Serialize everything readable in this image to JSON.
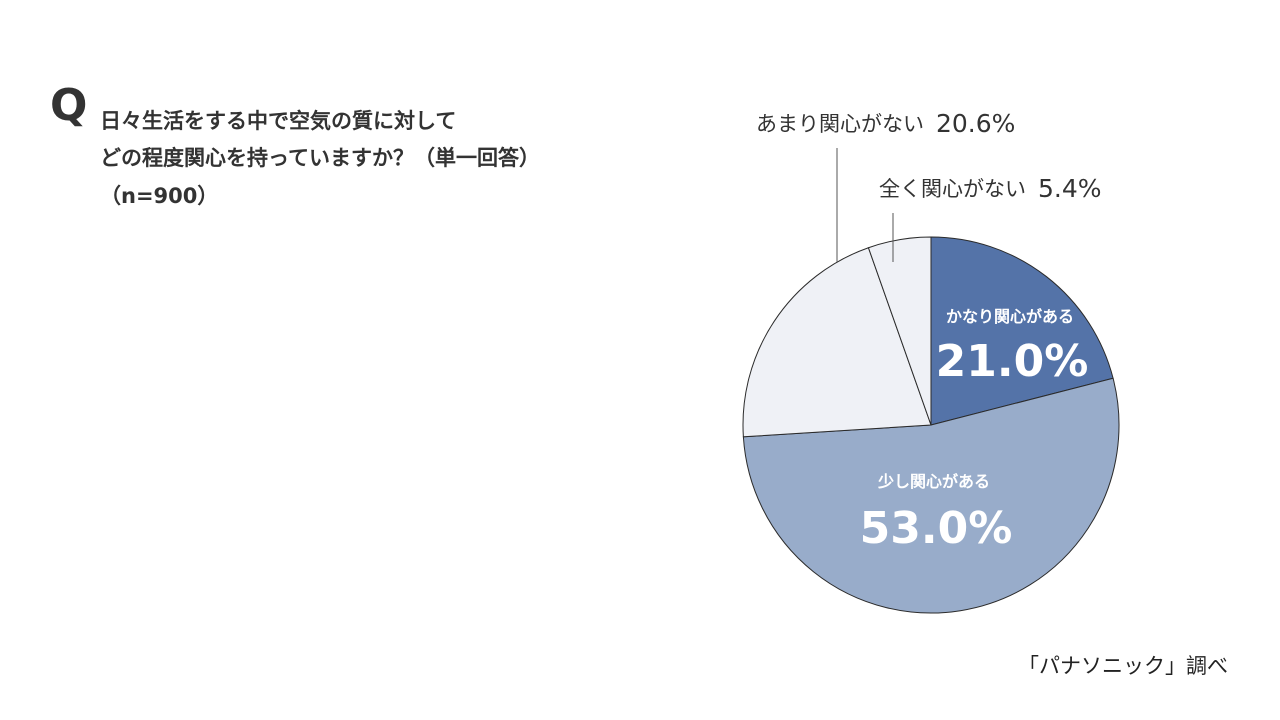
{
  "question": {
    "mark": "Q",
    "line1": "日々生活をする中で空気の質に対して",
    "line2": "どの程度関心を持っていますか？（単一回答）",
    "sample": "（n=900）"
  },
  "source": "「パナソニック」調べ",
  "chart_data": {
    "type": "pie",
    "title": "",
    "start": "12 o'clock",
    "direction": "clockwise",
    "slices": [
      {
        "label": "かなり関心がある",
        "value": 21.0,
        "display": "21.0%",
        "color": "#5473a8",
        "label_position": "inside"
      },
      {
        "label": "少し関心がある",
        "value": 53.0,
        "display": "53.0%",
        "color": "#98acca",
        "label_position": "inside"
      },
      {
        "label": "あまり関心がない",
        "value": 20.6,
        "display": "20.6%",
        "color": "#eff1f6",
        "label_position": "outside"
      },
      {
        "label": "全く関心がない",
        "value": 5.4,
        "display": "5.4%",
        "color": "#eff1f6",
        "label_position": "outside"
      }
    ]
  }
}
